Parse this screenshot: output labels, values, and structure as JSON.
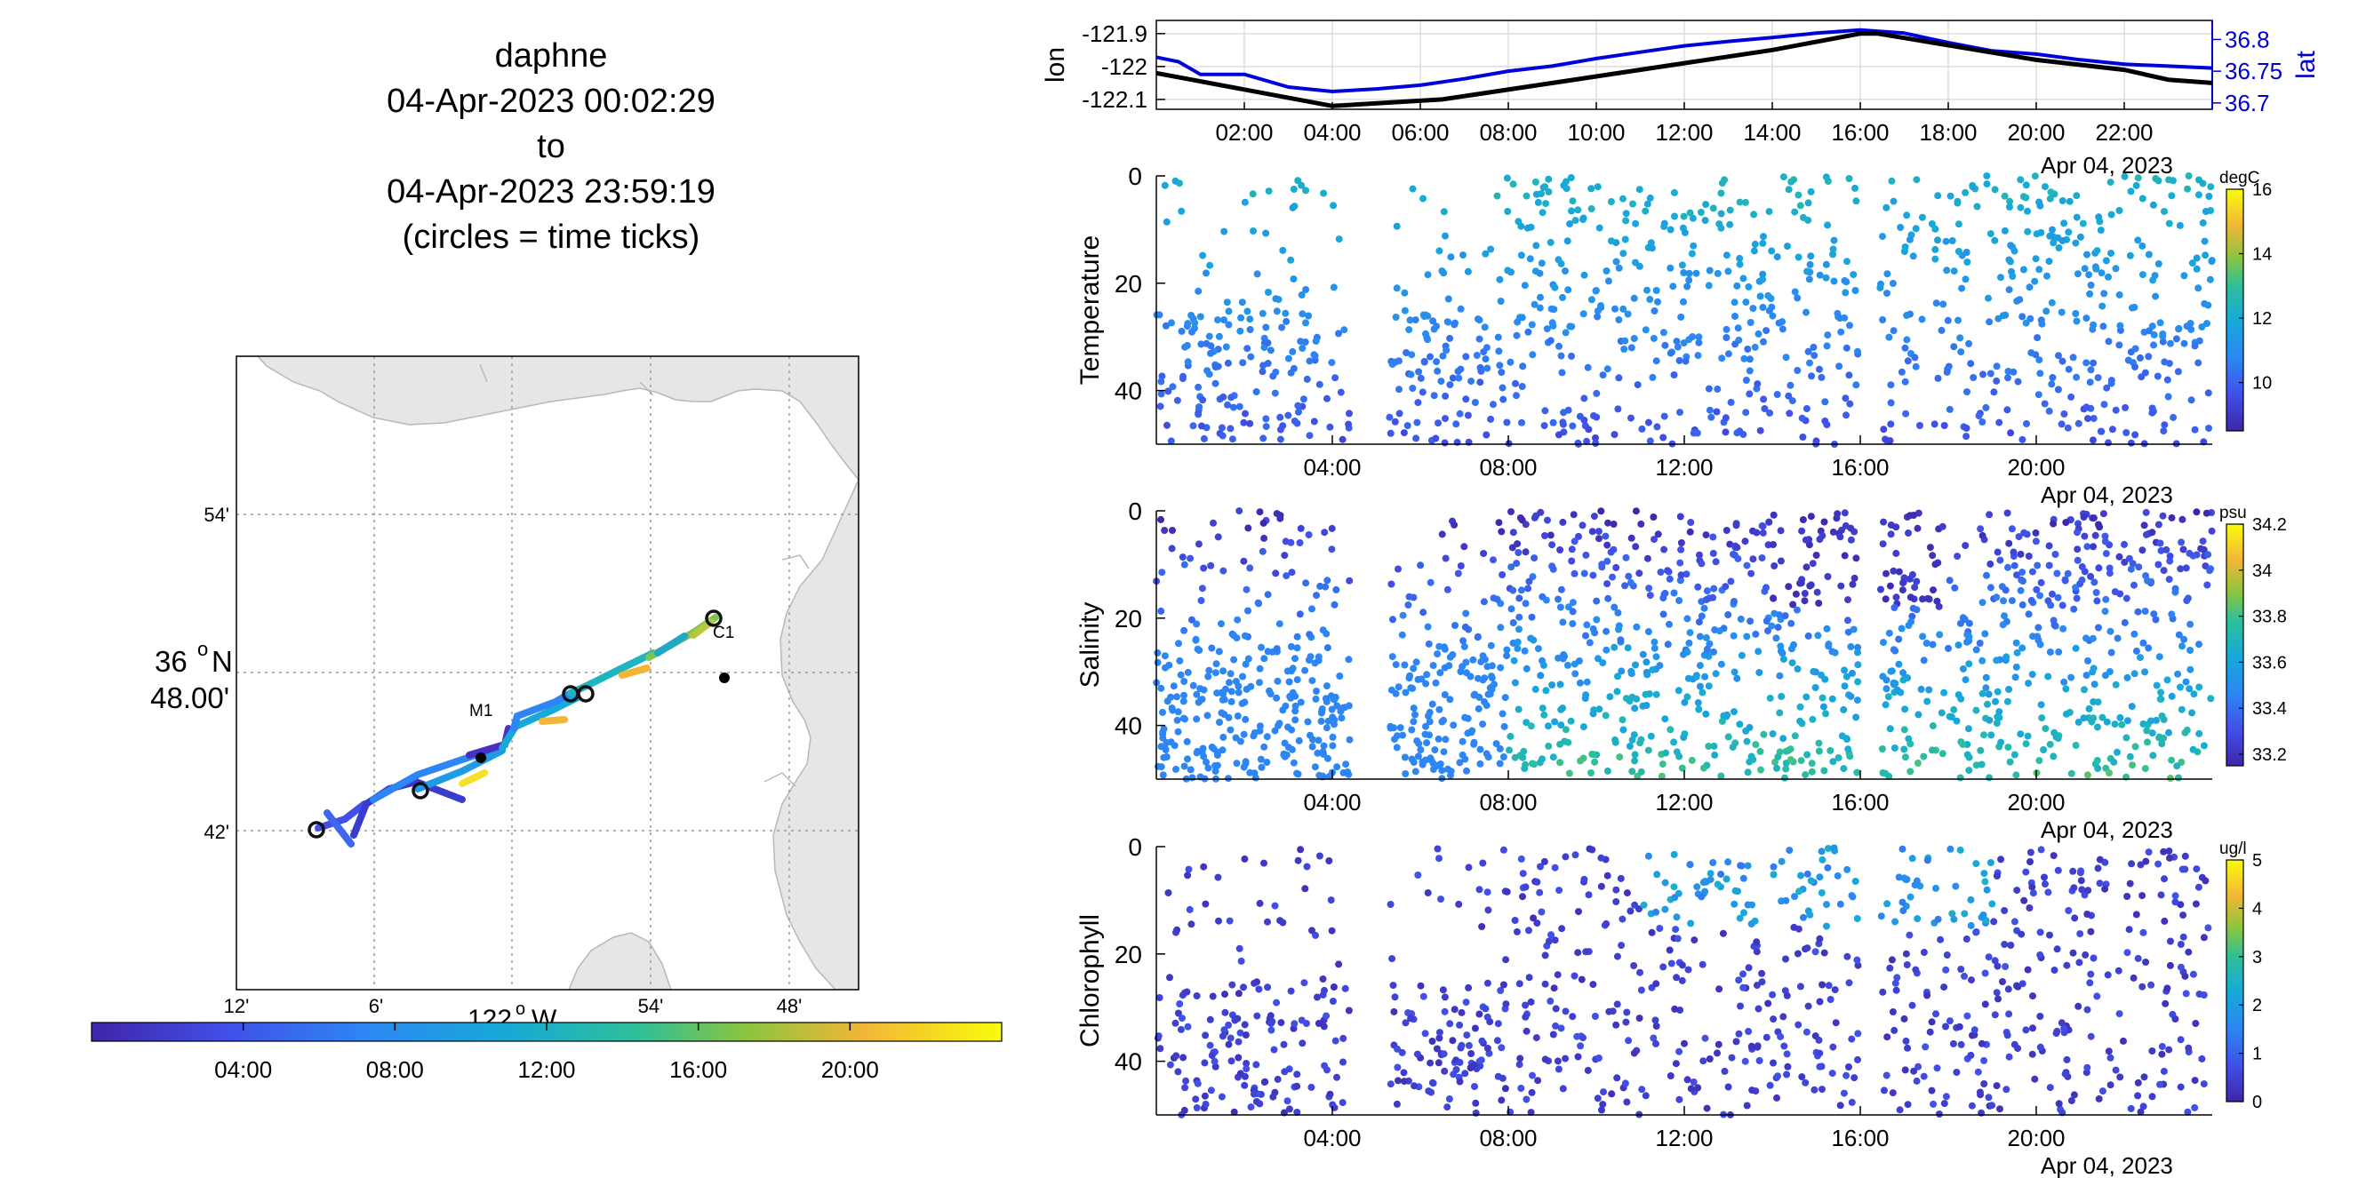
{
  "title_lines": [
    "daphne",
    "04-Apr-2023 00:02:29",
    "to",
    "04-Apr-2023 23:59:19",
    "(circles = time ticks)"
  ],
  "map": {
    "lat_ticks": [
      "54'",
      "48.00'",
      "42'"
    ],
    "lat_degree_label": "36",
    "lat_degree_suffix": "N",
    "lon_ticks": [
      "12'",
      "6'",
      "54'",
      "48'"
    ],
    "lon_degree_label": "122",
    "lon_degree_suffix": "W",
    "station_labels": [
      "M1",
      "C1"
    ],
    "land_color": "#e6e6e6",
    "colorbar_ticks": [
      "04:00",
      "08:00",
      "12:00",
      "16:00",
      "20:00"
    ]
  },
  "time_axis": {
    "ticks_top": [
      "02:00",
      "04:00",
      "06:00",
      "08:00",
      "10:00",
      "12:00",
      "14:00",
      "16:00",
      "18:00",
      "20:00",
      "22:00"
    ],
    "ticks_panels": [
      "04:00",
      "08:00",
      "12:00",
      "16:00",
      "20:00"
    ],
    "date_label": "Apr 04, 2023"
  },
  "chart_data": [
    {
      "type": "line",
      "title": "",
      "x_range_hours": [
        0,
        24
      ],
      "left_axis": {
        "label": "lon",
        "ticks": [
          "-121.9",
          "-122",
          "-122.1"
        ],
        "ylim": [
          -122.13,
          -121.86
        ]
      },
      "right_axis": {
        "label": "lat",
        "ticks": [
          "36.8",
          "36.75",
          "36.7"
        ],
        "ylim": [
          36.69,
          36.83
        ],
        "color": "#0000cc"
      },
      "series": [
        {
          "name": "lon",
          "color": "#000000",
          "x": [
            0,
            4,
            6.5,
            10,
            12,
            14,
            16,
            16.4,
            20,
            22,
            23,
            24
          ],
          "values": [
            -122.02,
            -122.12,
            -122.1,
            -122.03,
            -121.99,
            -121.95,
            -121.9,
            -121.9,
            -121.98,
            -122.01,
            -122.04,
            -122.05
          ]
        },
        {
          "name": "lat",
          "color": "#0000dd",
          "x": [
            0,
            0.5,
            1,
            2,
            3,
            4,
            5,
            6,
            7,
            8,
            9,
            10,
            11,
            12,
            13,
            14,
            15,
            16,
            17,
            18,
            19,
            20,
            21,
            22,
            23,
            24
          ],
          "values": [
            36.772,
            36.765,
            36.745,
            36.745,
            36.725,
            36.718,
            36.722,
            36.728,
            36.738,
            36.75,
            36.758,
            36.77,
            36.78,
            36.79,
            36.797,
            36.803,
            36.81,
            36.815,
            36.81,
            36.795,
            36.782,
            36.777,
            36.768,
            36.761,
            36.758,
            36.755
          ]
        }
      ]
    },
    {
      "type": "scatter",
      "ylabel": "Temperature",
      "units": "degC",
      "x_range_hours": [
        0,
        24
      ],
      "ylim": [
        0,
        50
      ],
      "y_reversed": true,
      "y_ticks": [
        "0",
        "20",
        "40"
      ],
      "colorbar_ticks": [
        "16",
        "14",
        "12",
        "10"
      ],
      "clim": [
        8.5,
        16
      ],
      "points": "approx. 1,100 casts, times 0–24 h, depth 0–50 m, 9–14 degC"
    },
    {
      "type": "scatter",
      "ylabel": "Salinity",
      "units": "psu",
      "x_range_hours": [
        0,
        24
      ],
      "ylim": [
        0,
        50
      ],
      "y_reversed": true,
      "y_ticks": [
        "0",
        "20",
        "40"
      ],
      "colorbar_ticks": [
        "34.2",
        "34",
        "33.8",
        "33.6",
        "33.4",
        "33.2"
      ],
      "clim": [
        33.15,
        34.2
      ],
      "points": "approx. 1,600 casts, times 0–24 h, depth 0–50 m, 33.2–34.0 psu"
    },
    {
      "type": "scatter",
      "ylabel": "Chlorophyll",
      "units": "ug/l",
      "x_range_hours": [
        0,
        24
      ],
      "ylim": [
        0,
        50
      ],
      "y_reversed": true,
      "y_ticks": [
        "0",
        "20",
        "40"
      ],
      "colorbar_ticks": [
        "5",
        "4",
        "3",
        "2",
        "1",
        "0"
      ],
      "clim": [
        0,
        5
      ],
      "points": "approx. 1,000 casts, times 0–24 h, depth 0–50 m, 0–2.5 ug/l"
    }
  ]
}
